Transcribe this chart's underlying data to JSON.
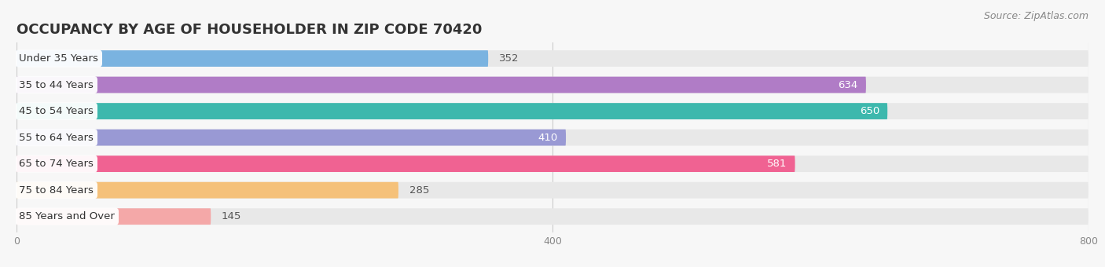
{
  "title": "OCCUPANCY BY AGE OF HOUSEHOLDER IN ZIP CODE 70420",
  "source": "Source: ZipAtlas.com",
  "categories": [
    "Under 35 Years",
    "35 to 44 Years",
    "45 to 54 Years",
    "55 to 64 Years",
    "65 to 74 Years",
    "75 to 84 Years",
    "85 Years and Over"
  ],
  "values": [
    352,
    634,
    650,
    410,
    581,
    285,
    145
  ],
  "bar_colors": [
    "#7ab3e0",
    "#b07cc6",
    "#3db8ad",
    "#9999d4",
    "#f06292",
    "#f5c17a",
    "#f4a8a8"
  ],
  "xlim": [
    0,
    800
  ],
  "xticks": [
    0,
    400,
    800
  ],
  "background_color": "#f7f7f7",
  "bar_background_color": "#e8e8e8",
  "title_fontsize": 13,
  "source_fontsize": 9,
  "label_fontsize": 9.5,
  "value_fontsize": 9.5,
  "bar_height": 0.62,
  "bar_gap": 0.38
}
